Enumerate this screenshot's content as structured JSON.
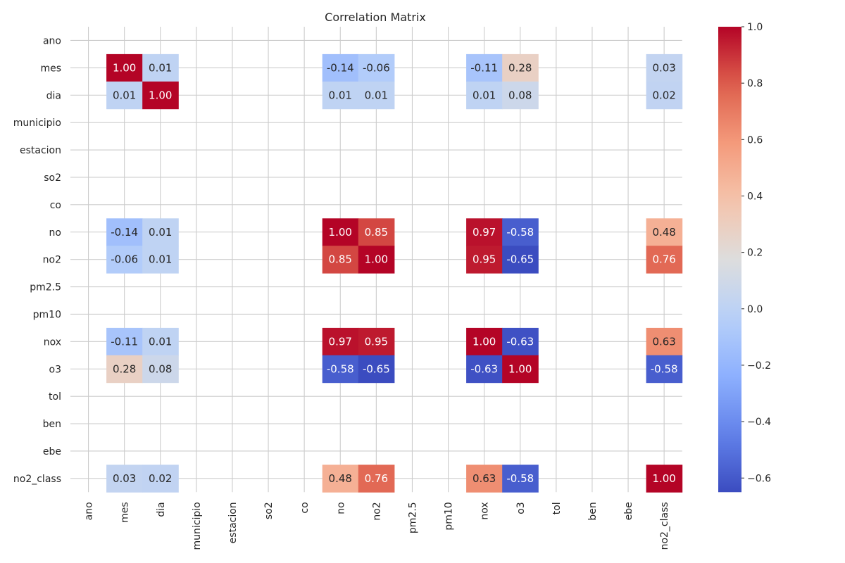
{
  "chart_data": {
    "type": "heatmap",
    "title": "Correlation Matrix",
    "variables": [
      "ano",
      "mes",
      "dia",
      "municipio",
      "estacion",
      "so2",
      "co",
      "no",
      "no2",
      "pm2.5",
      "pm10",
      "nox",
      "o3",
      "tol",
      "ben",
      "ebe",
      "no2_class"
    ],
    "values": [
      [
        null,
        null,
        null,
        null,
        null,
        null,
        null,
        null,
        null,
        null,
        null,
        null,
        null,
        null,
        null,
        null,
        null
      ],
      [
        null,
        1.0,
        0.01,
        null,
        null,
        null,
        null,
        -0.14,
        -0.06,
        null,
        null,
        -0.11,
        0.28,
        null,
        null,
        null,
        0.03
      ],
      [
        null,
        0.01,
        1.0,
        null,
        null,
        null,
        null,
        0.01,
        0.01,
        null,
        null,
        0.01,
        0.08,
        null,
        null,
        null,
        0.02
      ],
      [
        null,
        null,
        null,
        null,
        null,
        null,
        null,
        null,
        null,
        null,
        null,
        null,
        null,
        null,
        null,
        null,
        null
      ],
      [
        null,
        null,
        null,
        null,
        null,
        null,
        null,
        null,
        null,
        null,
        null,
        null,
        null,
        null,
        null,
        null,
        null
      ],
      [
        null,
        null,
        null,
        null,
        null,
        null,
        null,
        null,
        null,
        null,
        null,
        null,
        null,
        null,
        null,
        null,
        null
      ],
      [
        null,
        null,
        null,
        null,
        null,
        null,
        null,
        null,
        null,
        null,
        null,
        null,
        null,
        null,
        null,
        null,
        null
      ],
      [
        null,
        -0.14,
        0.01,
        null,
        null,
        null,
        null,
        1.0,
        0.85,
        null,
        null,
        0.97,
        -0.58,
        null,
        null,
        null,
        0.48
      ],
      [
        null,
        -0.06,
        0.01,
        null,
        null,
        null,
        null,
        0.85,
        1.0,
        null,
        null,
        0.95,
        -0.65,
        null,
        null,
        null,
        0.76
      ],
      [
        null,
        null,
        null,
        null,
        null,
        null,
        null,
        null,
        null,
        null,
        null,
        null,
        null,
        null,
        null,
        null,
        null
      ],
      [
        null,
        null,
        null,
        null,
        null,
        null,
        null,
        null,
        null,
        null,
        null,
        null,
        null,
        null,
        null,
        null,
        null
      ],
      [
        null,
        -0.11,
        0.01,
        null,
        null,
        null,
        null,
        0.97,
        0.95,
        null,
        null,
        1.0,
        -0.63,
        null,
        null,
        null,
        0.63
      ],
      [
        null,
        0.28,
        0.08,
        null,
        null,
        null,
        null,
        -0.58,
        -0.65,
        null,
        null,
        -0.63,
        1.0,
        null,
        null,
        null,
        -0.58
      ],
      [
        null,
        null,
        null,
        null,
        null,
        null,
        null,
        null,
        null,
        null,
        null,
        null,
        null,
        null,
        null,
        null,
        null
      ],
      [
        null,
        null,
        null,
        null,
        null,
        null,
        null,
        null,
        null,
        null,
        null,
        null,
        null,
        null,
        null,
        null,
        null
      ],
      [
        null,
        null,
        null,
        null,
        null,
        null,
        null,
        null,
        null,
        null,
        null,
        null,
        null,
        null,
        null,
        null,
        null
      ],
      [
        null,
        0.03,
        0.02,
        null,
        null,
        null,
        null,
        0.48,
        0.76,
        null,
        null,
        0.63,
        -0.58,
        null,
        null,
        null,
        1.0
      ]
    ],
    "value_format": "2 decimals",
    "colormap": "coolwarm",
    "colormap_stops": [
      "#3b4cc0",
      "#6282ea",
      "#8db0fe",
      "#b8d0f9",
      "#dddddd",
      "#f5c4ac",
      "#f49a7b",
      "#de604d",
      "#b40426"
    ],
    "vmin": -0.65,
    "vmax": 1.0,
    "colorbar_ticks": [
      "1.0",
      "0.8",
      "0.6",
      "0.4",
      "0.2",
      "0.0",
      "−0.2",
      "−0.4",
      "−0.6"
    ],
    "colorbar_tick_values": [
      1.0,
      0.8,
      0.6,
      0.4,
      0.2,
      0.0,
      -0.2,
      -0.4,
      -0.6
    ],
    "grid": true,
    "legend": "colorbar-right"
  }
}
